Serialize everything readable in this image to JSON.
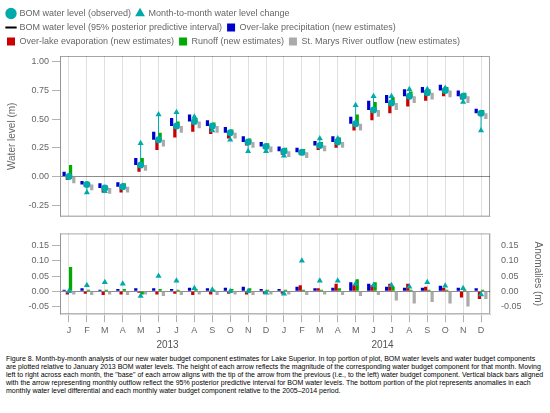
{
  "chart_data": [
    {
      "type": "bar",
      "ylabel": "Water level (m)",
      "categories": [
        "J",
        "F",
        "M",
        "A",
        "M",
        "J",
        "J",
        "A",
        "S",
        "O",
        "N",
        "D",
        "J",
        "F",
        "M",
        "A",
        "M",
        "J",
        "J",
        "A",
        "S",
        "O",
        "N",
        "D"
      ],
      "ylim": [
        -0.35,
        1.05
      ],
      "yticks": [
        -0.25,
        {
          "value": 0.0,
          "label": "0.00"
        },
        0.25,
        {
          "value": 0.5,
          "label": "0.50"
        },
        0.75,
        {
          "value": 1.0,
          "label": "1.00"
        }
      ],
      "grid": "x",
      "legend": "upper left",
      "tick_labels": "y",
      "series": [
        {
          "name": "BOM water level (observed)",
          "type": "scatter",
          "marker": "circle",
          "color": "#00aaaa",
          "values": [
            0.0,
            -0.07,
            -0.1,
            -0.09,
            0.1,
            0.32,
            0.44,
            0.48,
            0.44,
            0.38,
            0.3,
            0.26,
            0.22,
            0.21,
            0.27,
            0.3,
            0.46,
            0.58,
            0.64,
            0.7,
            0.73,
            0.75,
            0.7,
            0.55
          ]
        },
        {
          "name": "Month-to-month water level change",
          "type": "scatter",
          "marker": "triangle",
          "color": "#00aaaa",
          "base": "BOM water level (observed)",
          "values": [
            0.0,
            -0.07,
            -0.03,
            0.01,
            0.19,
            0.22,
            0.12,
            0.04,
            -0.04,
            -0.06,
            -0.08,
            -0.04,
            -0.04,
            -0.01,
            0.06,
            0.03,
            0.16,
            0.12,
            0.06,
            0.06,
            0.03,
            0.02,
            -0.05,
            -0.15
          ]
        },
        {
          "name": "BOM water level (95% posterior predictive interval)",
          "type": "error_bar",
          "color": "#000000",
          "lower": [
            -0.01,
            -0.08,
            -0.11,
            -0.1,
            0.09,
            0.31,
            0.43,
            0.47,
            0.43,
            0.37,
            0.29,
            0.25,
            0.21,
            0.2,
            0.26,
            0.29,
            0.45,
            0.57,
            0.63,
            0.69,
            0.72,
            0.74,
            0.69,
            0.54
          ],
          "upper": [
            0.01,
            -0.06,
            -0.09,
            -0.08,
            0.11,
            0.33,
            0.45,
            0.49,
            0.45,
            0.39,
            0.31,
            0.27,
            0.23,
            0.22,
            0.28,
            0.31,
            0.47,
            0.59,
            0.65,
            0.71,
            0.74,
            0.76,
            0.71,
            0.56
          ]
        },
        {
          "name": "Over-lake precipitation (new estimates)",
          "type": "bar",
          "color": "#0000cc",
          "base": "BOM water level (observed)",
          "values": [
            0.04,
            0.03,
            0.04,
            0.04,
            0.06,
            0.07,
            0.07,
            0.06,
            0.05,
            0.05,
            0.05,
            0.04,
            0.04,
            0.04,
            0.04,
            0.05,
            0.06,
            0.08,
            0.07,
            0.06,
            0.05,
            0.05,
            0.05,
            0.04
          ]
        },
        {
          "name": "Over-lake evaporation (new estimates)",
          "type": "bar",
          "color": "#cc0000",
          "base": "BOM water level (observed)",
          "values": [
            -0.03,
            -0.02,
            -0.04,
            -0.05,
            -0.06,
            -0.09,
            -0.1,
            -0.09,
            -0.07,
            -0.05,
            -0.03,
            -0.02,
            -0.03,
            -0.02,
            -0.04,
            -0.05,
            -0.06,
            -0.09,
            -0.09,
            -0.09,
            -0.07,
            -0.05,
            -0.03,
            -0.02
          ]
        },
        {
          "name": "Runoff (new estimates)",
          "type": "bar",
          "color": "#00aa00",
          "base": "BOM water level (observed)",
          "values": [
            0.1,
            0.02,
            0.02,
            0.03,
            0.06,
            0.06,
            0.04,
            0.03,
            0.03,
            0.03,
            0.03,
            0.03,
            0.03,
            0.03,
            0.03,
            0.04,
            0.08,
            0.07,
            0.05,
            0.04,
            0.03,
            0.03,
            0.03,
            0.03
          ]
        },
        {
          "name": "St. Marys River outflow (new estimates)",
          "type": "bar",
          "color": "#aaaaaa",
          "base": "BOM water level (observed)",
          "values": [
            -0.06,
            -0.05,
            -0.05,
            -0.05,
            -0.05,
            -0.06,
            -0.06,
            -0.06,
            -0.06,
            -0.05,
            -0.05,
            -0.05,
            -0.05,
            -0.05,
            -0.05,
            -0.05,
            -0.06,
            -0.06,
            -0.06,
            -0.06,
            -0.06,
            -0.06,
            -0.06,
            -0.05
          ]
        }
      ]
    },
    {
      "type": "bar",
      "categories": [
        "J",
        "F",
        "M",
        "A",
        "M",
        "J",
        "J",
        "A",
        "S",
        "O",
        "N",
        "D",
        "J",
        "F",
        "M",
        "A",
        "M",
        "J",
        "J",
        "A",
        "S",
        "O",
        "N",
        "D"
      ],
      "ylim": [
        -0.075,
        0.19
      ],
      "yticks": [
        -0.05,
        {
          "value": 0.0,
          "label": "0.00"
        },
        0.05,
        {
          "value": 0.1,
          "label": "0.10"
        },
        0.15
      ],
      "y2lim": [
        -0.075,
        0.19
      ],
      "y2ticks": [
        -0.05,
        {
          "value": 0.0,
          "label": "0.00"
        },
        0.05,
        {
          "value": 0.1,
          "label": "0.10"
        },
        0.15
      ],
      "y2label": "Anomalies (m)",
      "grid": "x",
      "annotations": [
        {
          "text": "2013",
          "x": 5.5
        },
        {
          "text": "2014",
          "x": 17.5
        }
      ],
      "caption": "Figure 8. Month-by-month analysis of our new water budget component estimates for Lake Superior. In top portion of plot, BOM water levels and water budget components are plotted\nrelative to January 2013 BOM water levels. The height of each arrow reflects the magnitude of the corresponding water budget component for that month. Moving left to right across\neach month, the \"base\" of each arrow aligns with the tip of the arrow from the previous (i.e., to the left) water budget component. Vertical black bars aligned with the arrow representing\nmonthly outflow reflect the 95% posterior predictive interval for BOM water levels. The bottom portion of the plot represents anomalies in each monthly water level differential and\neach monthly water budget component relative to the 2005–2014 period.",
      "series": [
        {
          "type": "bar",
          "color": "#0000cc",
          "values": [
            0.005,
            0.01,
            0.005,
            0.008,
            0.01,
            0.01,
            0.008,
            0.012,
            0.01,
            0.012,
            0.015,
            0.008,
            0.008,
            0.015,
            0.01,
            0.012,
            0.03,
            0.025,
            0.015,
            0.012,
            0.012,
            0.018,
            0.012,
            0.01
          ]
        },
        {
          "type": "bar",
          "color": "#cc0000",
          "values": [
            -0.01,
            -0.008,
            -0.012,
            -0.01,
            -0.005,
            -0.01,
            -0.008,
            -0.012,
            -0.01,
            -0.008,
            -0.01,
            -0.008,
            -0.008,
            0.02,
            0.01,
            0.025,
            0.02,
            0.02,
            0.025,
            0.025,
            0.015,
            0.012,
            -0.02,
            -0.025
          ]
        },
        {
          "type": "bar",
          "color": "#00aa00",
          "values": [
            0.08,
            0.005,
            0.005,
            0.008,
            -0.01,
            0.008,
            0.005,
            0.008,
            0.005,
            0.008,
            0.01,
            0.005,
            0.005,
            0.005,
            0.005,
            0.01,
            0.04,
            0.03,
            0.015,
            0.005,
            0.005,
            0.005,
            0.005,
            0.005
          ]
        },
        {
          "type": "bar",
          "color": "#aaaaaa",
          "values": [
            -0.01,
            -0.012,
            -0.01,
            -0.012,
            -0.01,
            -0.015,
            -0.012,
            -0.01,
            -0.012,
            -0.01,
            -0.012,
            -0.01,
            -0.01,
            -0.012,
            -0.01,
            -0.012,
            -0.015,
            -0.012,
            -0.03,
            -0.04,
            -0.035,
            -0.04,
            -0.05,
            -0.025
          ]
        },
        {
          "type": "scatter",
          "marker": "triangle",
          "color": "#00aaaa",
          "values": [
            0.0,
            0.02,
            0.03,
            0.025,
            -0.015,
            0.05,
            0.035,
            0.01,
            0.005,
            0.0,
            0.0,
            -0.005,
            -0.008,
            0.1,
            0.035,
            0.035,
            0.025,
            0.02,
            0.02,
            0.015,
            0.03,
            0.018,
            0.01,
            -0.01
          ]
        }
      ]
    }
  ]
}
